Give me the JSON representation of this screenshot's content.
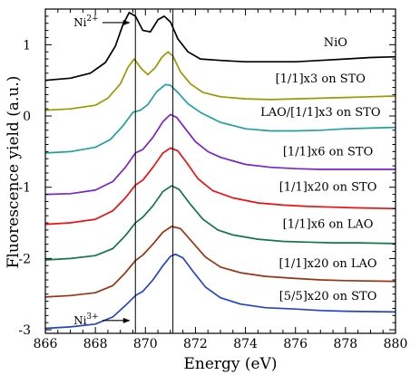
{
  "chart_data": {
    "type": "line",
    "xlabel": "Energy (eV)",
    "ylabel": "Fluorescence yield (a.u.)",
    "xlim": [
      866,
      880
    ],
    "ylim": [
      -3.05,
      1.5
    ],
    "xticks": [
      866,
      868,
      870,
      872,
      874,
      876,
      878,
      880
    ],
    "xtick_labels": [
      "866",
      "868",
      "870",
      "872",
      "874",
      "876",
      "878",
      "880"
    ],
    "yticks": [
      -3,
      -2,
      -1,
      0,
      1
    ],
    "ytick_labels": [
      "-3",
      "-2",
      "-1",
      "0",
      "1"
    ],
    "vertical_lines": [
      869.6,
      871.1
    ],
    "grid": false,
    "legend": "inline labels on each curve",
    "annotations": [
      {
        "base": "Ni",
        "sup": "2+",
        "x": 868.1,
        "y": 1.31
      },
      {
        "base": "Ni",
        "sup": "3+",
        "x": 868.1,
        "y": -2.87
      }
    ],
    "series": [
      {
        "name": "NiO",
        "color": "#000000",
        "points": [
          [
            866,
            0.5
          ],
          [
            867,
            0.53
          ],
          [
            867.8,
            0.6
          ],
          [
            868.4,
            0.75
          ],
          [
            868.8,
            0.98
          ],
          [
            869.1,
            1.28
          ],
          [
            869.35,
            1.45
          ],
          [
            869.6,
            1.4
          ],
          [
            869.9,
            1.2
          ],
          [
            870.2,
            1.18
          ],
          [
            870.5,
            1.35
          ],
          [
            870.75,
            1.4
          ],
          [
            871.0,
            1.32
          ],
          [
            871.3,
            1.08
          ],
          [
            871.7,
            0.9
          ],
          [
            872.2,
            0.8
          ],
          [
            873,
            0.78
          ],
          [
            874,
            0.76
          ],
          [
            875,
            0.76
          ],
          [
            876,
            0.76
          ],
          [
            877,
            0.78
          ],
          [
            878,
            0.8
          ],
          [
            879,
            0.82
          ],
          [
            880,
            0.83
          ]
        ]
      },
      {
        "name": "[1/1]x3 on STO",
        "color": "#999900",
        "points": [
          [
            866,
            0.08
          ],
          [
            867,
            0.1
          ],
          [
            868,
            0.15
          ],
          [
            868.5,
            0.25
          ],
          [
            869.0,
            0.45
          ],
          [
            869.3,
            0.68
          ],
          [
            869.55,
            0.8
          ],
          [
            869.85,
            0.66
          ],
          [
            870.1,
            0.58
          ],
          [
            870.4,
            0.68
          ],
          [
            870.65,
            0.82
          ],
          [
            870.9,
            0.9
          ],
          [
            871.1,
            0.84
          ],
          [
            871.4,
            0.62
          ],
          [
            871.8,
            0.45
          ],
          [
            872.3,
            0.33
          ],
          [
            873,
            0.27
          ],
          [
            874,
            0.24
          ],
          [
            875,
            0.23
          ],
          [
            876,
            0.24
          ],
          [
            877,
            0.25
          ],
          [
            878,
            0.26
          ],
          [
            879,
            0.27
          ],
          [
            880,
            0.28
          ]
        ]
      },
      {
        "name": "LAO/[1/1]x3 on STO",
        "color": "#20a0a0",
        "points": [
          [
            866,
            -0.52
          ],
          [
            867,
            -0.5
          ],
          [
            868,
            -0.44
          ],
          [
            868.6,
            -0.33
          ],
          [
            869.1,
            -0.14
          ],
          [
            869.5,
            0.05
          ],
          [
            869.8,
            0.08
          ],
          [
            870.1,
            0.16
          ],
          [
            870.45,
            0.34
          ],
          [
            870.8,
            0.44
          ],
          [
            871.0,
            0.43
          ],
          [
            871.3,
            0.33
          ],
          [
            871.7,
            0.17
          ],
          [
            872.2,
            0.05
          ],
          [
            873,
            -0.09
          ],
          [
            874,
            -0.18
          ],
          [
            875,
            -0.21
          ],
          [
            876,
            -0.21
          ],
          [
            877,
            -0.2
          ],
          [
            878,
            -0.18
          ],
          [
            879,
            -0.17
          ],
          [
            880,
            -0.16
          ]
        ]
      },
      {
        "name": "[1/1]x6 on STO",
        "color": "#7a22cc",
        "points": [
          [
            866,
            -1.1
          ],
          [
            867,
            -1.09
          ],
          [
            868,
            -1.04
          ],
          [
            868.7,
            -0.92
          ],
          [
            869.2,
            -0.72
          ],
          [
            869.6,
            -0.52
          ],
          [
            869.9,
            -0.47
          ],
          [
            870.3,
            -0.3
          ],
          [
            870.7,
            -0.08
          ],
          [
            871.0,
            0.02
          ],
          [
            871.25,
            -0.02
          ],
          [
            871.6,
            -0.18
          ],
          [
            872.0,
            -0.36
          ],
          [
            872.5,
            -0.5
          ],
          [
            873,
            -0.58
          ],
          [
            874,
            -0.68
          ],
          [
            875,
            -0.72
          ],
          [
            876,
            -0.74
          ],
          [
            877,
            -0.75
          ],
          [
            878,
            -0.75
          ],
          [
            879,
            -0.75
          ],
          [
            880,
            -0.75
          ]
        ]
      },
      {
        "name": "[1/1]x20 on STO",
        "color": "#ee1111",
        "points": [
          [
            866,
            -1.52
          ],
          [
            867,
            -1.5
          ],
          [
            868,
            -1.45
          ],
          [
            868.7,
            -1.33
          ],
          [
            869.2,
            -1.15
          ],
          [
            869.6,
            -0.97
          ],
          [
            869.9,
            -0.9
          ],
          [
            870.3,
            -0.72
          ],
          [
            870.7,
            -0.52
          ],
          [
            871.0,
            -0.45
          ],
          [
            871.3,
            -0.49
          ],
          [
            871.7,
            -0.68
          ],
          [
            872.1,
            -0.88
          ],
          [
            872.7,
            -1.05
          ],
          [
            873.5,
            -1.15
          ],
          [
            874.5,
            -1.22
          ],
          [
            875.5,
            -1.25
          ],
          [
            876.5,
            -1.27
          ],
          [
            877.5,
            -1.28
          ],
          [
            878.5,
            -1.29
          ],
          [
            880,
            -1.3
          ]
        ]
      },
      {
        "name": "[1/1]x6 on LAO",
        "color": "#117744",
        "points": [
          [
            866,
            -2.02
          ],
          [
            867,
            -2.0
          ],
          [
            868,
            -1.96
          ],
          [
            868.7,
            -1.86
          ],
          [
            869.2,
            -1.68
          ],
          [
            869.6,
            -1.5
          ],
          [
            869.9,
            -1.42
          ],
          [
            870.3,
            -1.26
          ],
          [
            870.7,
            -1.06
          ],
          [
            871.05,
            -0.98
          ],
          [
            871.35,
            -1.03
          ],
          [
            871.8,
            -1.24
          ],
          [
            872.3,
            -1.45
          ],
          [
            872.9,
            -1.6
          ],
          [
            873.5,
            -1.67
          ],
          [
            874.5,
            -1.73
          ],
          [
            875.5,
            -1.76
          ],
          [
            876.5,
            -1.77
          ],
          [
            877.5,
            -1.78
          ],
          [
            878.5,
            -1.78
          ],
          [
            880,
            -1.79
          ]
        ]
      },
      {
        "name": "[1/1]x20 on LAO",
        "color": "#993311",
        "points": [
          [
            866,
            -2.54
          ],
          [
            867,
            -2.52
          ],
          [
            868,
            -2.48
          ],
          [
            868.7,
            -2.38
          ],
          [
            869.2,
            -2.2
          ],
          [
            869.6,
            -2.03
          ],
          [
            869.9,
            -1.95
          ],
          [
            870.3,
            -1.8
          ],
          [
            870.7,
            -1.63
          ],
          [
            871.05,
            -1.55
          ],
          [
            871.4,
            -1.58
          ],
          [
            871.9,
            -1.78
          ],
          [
            872.4,
            -1.98
          ],
          [
            873,
            -2.12
          ],
          [
            873.8,
            -2.2
          ],
          [
            874.8,
            -2.25
          ],
          [
            876,
            -2.28
          ],
          [
            877,
            -2.3
          ],
          [
            878,
            -2.31
          ],
          [
            880,
            -2.32
          ]
        ]
      },
      {
        "name": "[5/5]x20 on STO",
        "color": "#2244cc",
        "points": [
          [
            866,
            -2.98
          ],
          [
            867,
            -2.96
          ],
          [
            868,
            -2.92
          ],
          [
            868.7,
            -2.82
          ],
          [
            869.2,
            -2.66
          ],
          [
            869.6,
            -2.52
          ],
          [
            869.9,
            -2.46
          ],
          [
            870.3,
            -2.3
          ],
          [
            870.7,
            -2.1
          ],
          [
            871.0,
            -1.97
          ],
          [
            871.2,
            -1.94
          ],
          [
            871.5,
            -1.99
          ],
          [
            871.9,
            -2.18
          ],
          [
            872.4,
            -2.4
          ],
          [
            873,
            -2.55
          ],
          [
            873.8,
            -2.64
          ],
          [
            874.8,
            -2.69
          ],
          [
            876,
            -2.71
          ],
          [
            877,
            -2.73
          ],
          [
            878,
            -2.74
          ],
          [
            880,
            -2.75
          ]
        ]
      }
    ],
    "labels": [
      {
        "series": "NiO",
        "text": "NiO",
        "x": 877.6,
        "y": 0.98
      },
      {
        "series": "[1/1]x3 on STO",
        "text": "[1/1]x3 on STO",
        "x": 877.0,
        "y": 0.47
      },
      {
        "series": "LAO/[1/1]x3 on STO",
        "text": "LAO/[1/1]x3 on STO",
        "x": 877.0,
        "y": 0.0
      },
      {
        "series": "[1/1]x6 on STO",
        "text": "[1/1]x6 on STO",
        "x": 877.3,
        "y": -0.55
      },
      {
        "series": "[1/1]x20 on STO",
        "text": "[1/1]x20 on STO",
        "x": 877.3,
        "y": -1.05
      },
      {
        "series": "[1/1]x6 on LAO",
        "text": "[1/1]x6 on LAO",
        "x": 877.3,
        "y": -1.57
      },
      {
        "series": "[1/1]x20 on LAO",
        "text": "[1/1]x20 on LAO",
        "x": 877.3,
        "y": -2.12
      },
      {
        "series": "[5/5]x20 on STO",
        "text": "[5/5]x20 on STO",
        "x": 877.3,
        "y": -2.58
      }
    ]
  }
}
